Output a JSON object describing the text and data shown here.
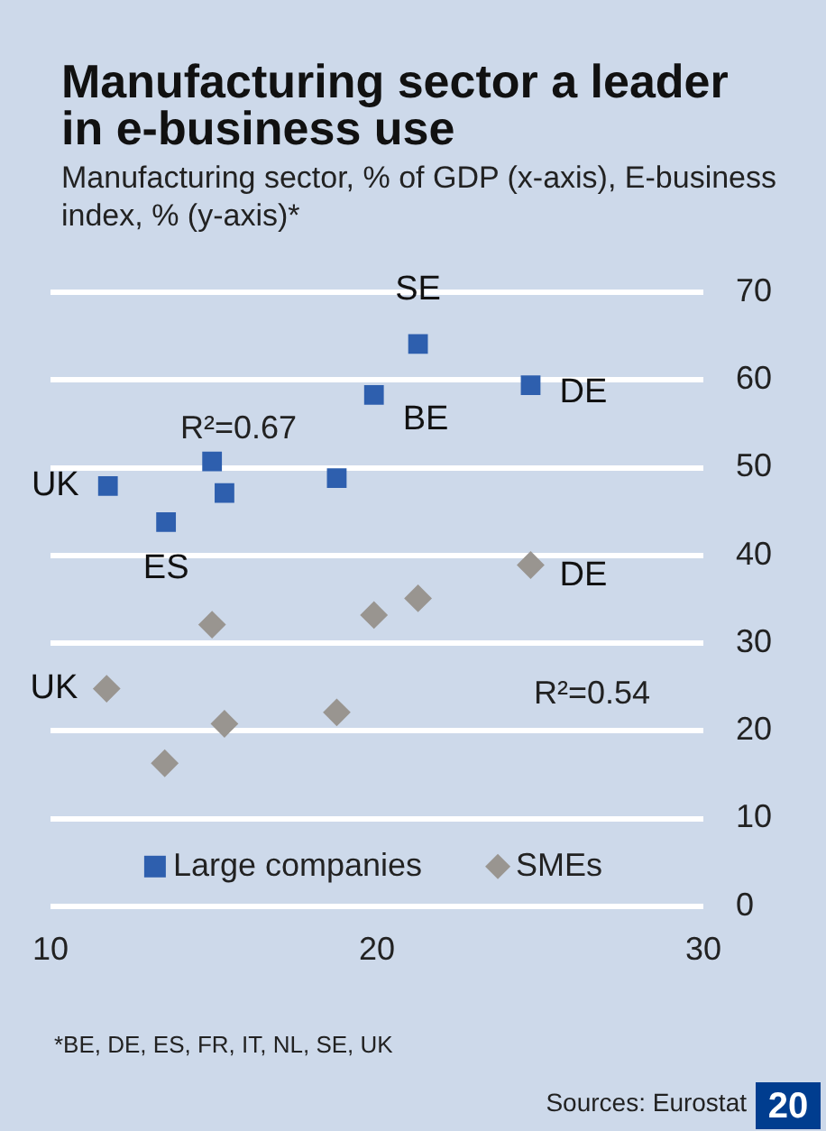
{
  "chart_data": {
    "type": "scatter",
    "title": "Manufacturing sector a leader in e-business use",
    "subtitle": "Manufacturing sector, % of GDP (x-axis), E-business index, % (y-axis)*",
    "series": [
      {
        "name": "Large companies",
        "color": "#2e5fae",
        "marker": "square",
        "x": [
          11.76,
          13.54,
          14.95,
          15.33,
          18.77,
          19.91,
          21.26,
          24.71
        ],
        "values": [
          47.9,
          43.8,
          50.7,
          47.1,
          48.8,
          58.3,
          64.1,
          59.4
        ]
      },
      {
        "name": "SMEs",
        "color": "#999590",
        "marker": "diamond",
        "x": [
          11.72,
          13.5,
          14.95,
          15.33,
          18.77,
          19.91,
          21.26,
          24.71
        ],
        "values": [
          24.8,
          16.3,
          32.1,
          20.8,
          22.1,
          33.2,
          35.1,
          38.9
        ]
      }
    ],
    "xlim": [
      10,
      30
    ],
    "xticks": [
      10,
      20,
      30
    ],
    "ylim": [
      0,
      70
    ],
    "yticks": [
      0,
      10,
      20,
      30,
      40,
      50,
      60,
      70
    ],
    "grid": "y",
    "legend": "bottom",
    "annotations": [
      {
        "text": "UK",
        "x": 11.76,
        "y": 47.9
      },
      {
        "text": "ES",
        "x": 13.54,
        "y": 43.8
      },
      {
        "text": "SE",
        "x": 21.26,
        "y": 64.1
      },
      {
        "text": "BE",
        "x": 19.91,
        "y": 58.3
      },
      {
        "text": "DE",
        "x": 24.71,
        "y": 59.4
      },
      {
        "text": "UK",
        "x": 11.72,
        "y": 24.8
      },
      {
        "text": "DE",
        "x": 24.71,
        "y": 38.9
      },
      "R²=0.67",
      "R²=0.54",
      "*BE, DE, ES, FR, IT, NL, SE, UK",
      "Sources: Eurostat",
      "20"
    ]
  }
}
